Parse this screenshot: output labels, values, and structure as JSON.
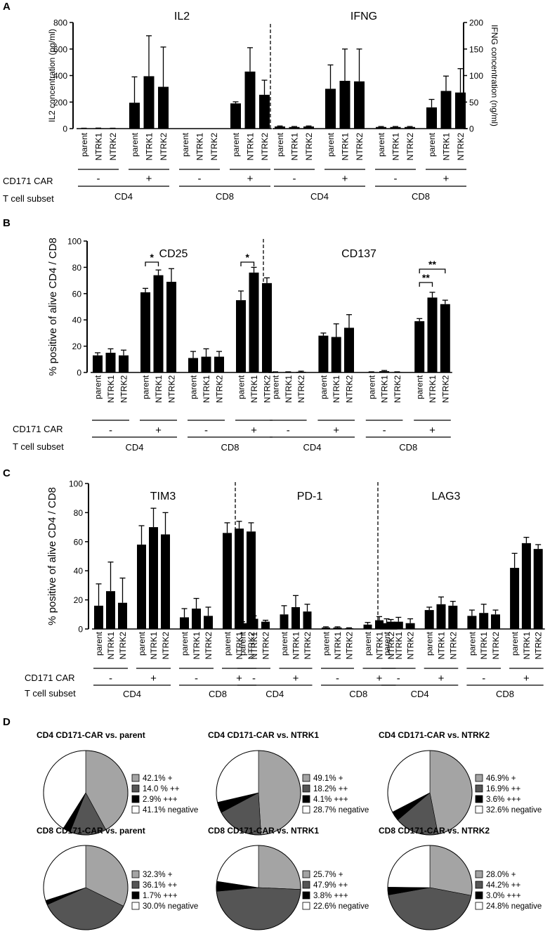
{
  "figure": {
    "panel_labels": [
      "A",
      "B",
      "C",
      "D"
    ],
    "row_labels": {
      "car": "CD171 CAR",
      "subset": "T cell subset"
    },
    "signs": {
      "neg": "-",
      "pos": "+"
    },
    "subsets": [
      "CD4",
      "CD8"
    ],
    "categories": [
      "parent",
      "NTRK1",
      "NTRK2"
    ]
  },
  "chart_data": [
    {
      "id": "A-IL2",
      "type": "bar",
      "title": "IL2",
      "ylabel": "IL2 concentration (pg/ml)",
      "ylim": [
        0,
        800
      ],
      "yticks": [
        0,
        200,
        400,
        600,
        800
      ],
      "categories": [
        "parent",
        "NTRK1",
        "NTRK2",
        "parent",
        "NTRK1",
        "NTRK2",
        "parent",
        "NTRK1",
        "NTRK2",
        "parent",
        "NTRK1",
        "NTRK2"
      ],
      "groups": [
        "CD4 / CD171 CAR -",
        "CD4 / CD171 CAR +",
        "CD8 / CD171 CAR -",
        "CD8 / CD171 CAR +"
      ],
      "values": [
        2,
        3,
        2,
        195,
        395,
        315,
        0,
        0,
        0,
        190,
        430,
        255
      ],
      "errors": [
        1,
        1,
        1,
        195,
        305,
        300,
        0,
        0,
        0,
        12,
        180,
        110
      ]
    },
    {
      "id": "A-IFNG",
      "type": "bar",
      "title": "IFNG",
      "ylabel": "IFNG concentration (ng/ml)",
      "ylim": [
        0,
        200
      ],
      "yticks": [
        0,
        50,
        100,
        150,
        200
      ],
      "categories": [
        "parent",
        "NTRK1",
        "NTRK2",
        "parent",
        "NTRK1",
        "NTRK2",
        "parent",
        "NTRK1",
        "NTRK2",
        "parent",
        "NTRK1",
        "NTRK2"
      ],
      "groups": [
        "CD4 / CD171 CAR -",
        "CD4 / CD171 CAR +",
        "CD8 / CD171 CAR -",
        "CD8 / CD171 CAR +"
      ],
      "values": [
        4,
        3,
        4,
        75,
        90,
        89,
        3,
        3,
        3,
        40,
        71,
        68
      ],
      "errors": [
        1,
        1,
        1,
        45,
        60,
        61,
        1,
        1,
        1,
        15,
        28,
        45
      ]
    },
    {
      "id": "B-CD25",
      "type": "bar",
      "title": "CD25",
      "ylabel": "% positive of alive CD4 / CD8",
      "ylim": [
        0,
        100
      ],
      "yticks": [
        0,
        20,
        40,
        60,
        80,
        100
      ],
      "categories": [
        "parent",
        "NTRK1",
        "NTRK2",
        "parent",
        "NTRK1",
        "NTRK2",
        "parent",
        "NTRK1",
        "NTRK2",
        "parent",
        "NTRK1",
        "NTRK2"
      ],
      "groups": [
        "CD4 / CD171 CAR -",
        "CD4 / CD171 CAR +",
        "CD8 / CD171 CAR -",
        "CD8 / CD171 CAR +"
      ],
      "values": [
        13,
        15,
        13,
        61,
        74,
        69,
        11,
        12,
        12,
        55,
        76,
        68
      ],
      "errors": [
        2,
        3,
        4,
        3,
        4,
        10,
        5,
        6,
        4,
        7,
        4,
        4
      ],
      "annotations": [
        {
          "text": "*",
          "from": "parent (CD4 +)",
          "to": "NTRK1 (CD4 +)"
        },
        {
          "text": "*",
          "from": "parent (CD8 +)",
          "to": "NTRK1 (CD8 +)"
        }
      ]
    },
    {
      "id": "B-CD137",
      "type": "bar",
      "title": "CD137",
      "ylabel": "",
      "ylim": [
        0,
        100
      ],
      "categories": [
        "parent",
        "NTRK1",
        "NTRK2",
        "parent",
        "NTRK1",
        "NTRK2",
        "parent",
        "NTRK1",
        "NTRK2",
        "parent",
        "NTRK1",
        "NTRK2"
      ],
      "groups": [
        "CD4 / CD171 CAR -",
        "CD4 / CD171 CAR +",
        "CD8 / CD171 CAR -",
        "CD8 / CD171 CAR +"
      ],
      "values": [
        0.3,
        0.3,
        0.5,
        28,
        27,
        34,
        0.3,
        1,
        0.3,
        39,
        57,
        52
      ],
      "errors": [
        0.2,
        0.2,
        0.5,
        2,
        10,
        10,
        0.2,
        0.5,
        0.2,
        2,
        4,
        3
      ],
      "annotations": [
        {
          "text": "**",
          "from": "parent (CD8 +)",
          "to": "NTRK1 (CD8 +)"
        },
        {
          "text": "**",
          "from": "parent (CD8 +)",
          "to": "NTRK2 (CD8 +)"
        }
      ]
    },
    {
      "id": "C-TIM3",
      "type": "bar",
      "title": "TIM3",
      "ylabel": "% positive of alive CD4 / CD8",
      "ylim": [
        0,
        100
      ],
      "yticks": [
        0,
        20,
        40,
        60,
        80,
        100
      ],
      "categories": [
        "parent",
        "NTRK1",
        "NTRK2",
        "parent",
        "NTRK1",
        "NTRK2",
        "parent",
        "NTRK1",
        "NTRK2",
        "parent",
        "NTRK1",
        "NTRK2"
      ],
      "groups": [
        "CD4 / CD171 CAR -",
        "CD4 / CD171 CAR +",
        "CD8 / CD171 CAR -",
        "CD8 / CD171 CAR +"
      ],
      "values": [
        16,
        26,
        18,
        58,
        70,
        65,
        8,
        14,
        9,
        66,
        69,
        67
      ],
      "errors": [
        15,
        20,
        17,
        13,
        13,
        15,
        6,
        7,
        6,
        7,
        5,
        6
      ]
    },
    {
      "id": "C-PD1",
      "type": "bar",
      "title": "PD-1",
      "ylabel": "",
      "ylim": [
        0,
        100
      ],
      "categories": [
        "parent",
        "NTRK1",
        "NTRK2",
        "parent",
        "NTRK1",
        "NTRK2",
        "parent",
        "NTRK1",
        "NTRK2",
        "parent",
        "NTRK1",
        "NTRK2"
      ],
      "groups": [
        "CD4 / CD171 CAR -",
        "CD4 / CD171 CAR +",
        "CD8 / CD171 CAR -",
        "CD8 / CD171 CAR +"
      ],
      "values": [
        4,
        7,
        5,
        10,
        15,
        12,
        1,
        1,
        0.5,
        3,
        6,
        5
      ],
      "errors": [
        1,
        2,
        1,
        6,
        8,
        5,
        0.5,
        0.5,
        0.3,
        1.5,
        2.5,
        1.5
      ]
    },
    {
      "id": "C-LAG3",
      "type": "bar",
      "title": "LAG3",
      "ylabel": "",
      "ylim": [
        0,
        100
      ],
      "categories": [
        "parent",
        "NTRK1",
        "NTRK2",
        "parent",
        "NTRK1",
        "NTRK2",
        "parent",
        "NTRK1",
        "NTRK2",
        "parent",
        "NTRK1",
        "NTRK2"
      ],
      "groups": [
        "CD4 / CD171 CAR -",
        "CD4 / CD171 CAR +",
        "CD8 / CD171 CAR -",
        "CD8 / CD171 CAR +"
      ],
      "values": [
        4,
        5,
        4,
        13,
        17,
        16,
        9,
        11,
        10,
        42,
        59,
        55
      ],
      "errors": [
        3,
        3,
        3,
        2,
        5,
        3,
        4,
        6,
        3,
        10,
        4,
        3
      ]
    },
    {
      "id": "D-pies",
      "type": "pie",
      "legend_colors": [
        "#a4a4a4",
        "#555555",
        "#000000",
        "#ffffff"
      ],
      "pies": [
        {
          "title": "CD4 CD171-CAR vs. parent",
          "values": [
            42.1,
            14.0,
            2.9,
            41.1
          ],
          "legend": [
            "42.1% +",
            "14.0 % ++",
            "2.9% +++",
            "41.1% negative"
          ]
        },
        {
          "title": "CD4 CD171-CAR vs. NTRK1",
          "values": [
            49.1,
            18.2,
            4.1,
            28.7
          ],
          "legend": [
            "49.1% +",
            "18.2% ++",
            "4.1% +++",
            "28.7% negative"
          ]
        },
        {
          "title": "CD4 CD171-CAR vs. NTRK2",
          "values": [
            46.9,
            16.9,
            3.6,
            32.6
          ],
          "legend": [
            "46.9% +",
            "16.9% ++",
            "3.6% +++",
            "32.6% negative"
          ]
        },
        {
          "title": "CD8 CD171-CAR vs. parent",
          "values": [
            32.3,
            36.1,
            1.7,
            30.0
          ],
          "legend": [
            "32.3% +",
            "36.1% ++",
            "1.7% +++",
            "30.0% negative"
          ]
        },
        {
          "title": "CD8 CD171-CAR vs. NTRK1",
          "values": [
            25.7,
            47.9,
            3.8,
            22.6
          ],
          "legend": [
            "25.7% +",
            "47.9% ++",
            "3.8% +++",
            "22.6% negative"
          ]
        },
        {
          "title": "CD8 CD171-CAR vs. NTRK2",
          "values": [
            28.0,
            44.2,
            3.0,
            24.8
          ],
          "legend": [
            "28.0% +",
            "44.2% ++",
            "3.0% +++",
            "24.8% negative"
          ]
        }
      ]
    }
  ]
}
